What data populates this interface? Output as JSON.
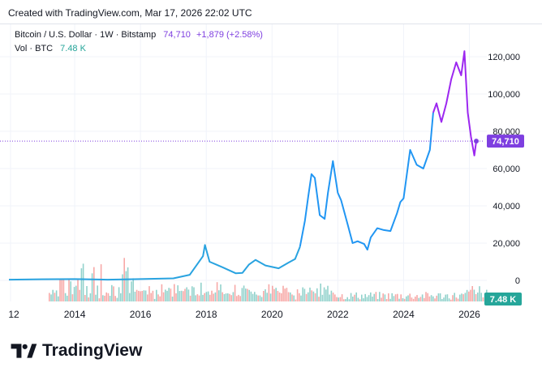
{
  "header": {
    "created_text": "Created with TradingView.com, Mar 17, 2026 22:02 UTC"
  },
  "legend": {
    "symbol": "Bitcoin / U.S. Dollar · 1W · Bitstamp",
    "price": "74,710",
    "change": "+1,879 (+2.58%)",
    "vol_label": "Vol · BTC",
    "vol_value": "7.48 K"
  },
  "footer": {
    "brand": "TradingView"
  },
  "colors": {
    "line_pre2024": "#2196f3",
    "line_early": "#29a3e0",
    "line_recent": "#9c27f0",
    "price_badge": "#7e3fe0",
    "vol_badge": "#26a69a",
    "vol_up": "#26a69a",
    "vol_down": "#ef5350"
  },
  "chart_data": {
    "type": "line",
    "x_axis_ticks": [
      "12",
      "2014",
      "2016",
      "2018",
      "2020",
      "2022",
      "2024",
      "2026"
    ],
    "y_axis_ticks": [
      "0",
      "20,000",
      "40,000",
      "60,000",
      "80,000",
      "100,000",
      "120,000"
    ],
    "current_price_label": "74,710",
    "current_volume_label": "7.48 K",
    "series": [
      {
        "x": [
          2012.0,
          2013.0,
          2014.0,
          2015.0,
          2016.0,
          2017.0,
          2017.5,
          2017.9,
          2017.96,
          2018.1,
          2018.3,
          2018.5,
          2018.9,
          2019.1,
          2019.3,
          2019.5,
          2019.8,
          2020.0,
          2020.2,
          2020.5,
          2020.7,
          2020.85,
          2021.0,
          2021.1,
          2021.2,
          2021.3,
          2021.45,
          2021.6,
          2021.7,
          2021.85,
          2022.0,
          2022.1,
          2022.3,
          2022.45,
          2022.6,
          2022.8,
          2022.9,
          2023.0,
          2023.2,
          2023.4,
          2023.6,
          2023.8,
          2023.9,
          2024.0,
          2024.2,
          2024.4,
          2024.6,
          2024.8,
          2024.9,
          2025.0,
          2025.15,
          2025.3,
          2025.45,
          2025.6,
          2025.75,
          2025.85,
          2025.95,
          2026.05,
          2026.15,
          2026.21
        ],
        "y": [
          400,
          600,
          700,
          400,
          700,
          1100,
          3000,
          13000,
          19000,
          10000,
          8500,
          7000,
          3800,
          4000,
          8500,
          11000,
          8000,
          7200,
          6500,
          9500,
          11500,
          18000,
          32000,
          45000,
          57000,
          55000,
          35000,
          33000,
          47000,
          64000,
          47000,
          43000,
          30000,
          20000,
          21000,
          19500,
          16500,
          23000,
          28000,
          27000,
          26500,
          36000,
          42000,
          44000,
          70000,
          62000,
          60000,
          70000,
          90000,
          95000,
          85000,
          95000,
          108000,
          117000,
          110000,
          123000,
          90000,
          77000,
          67000,
          74710
        ]
      }
    ],
    "ylim": [
      -10000,
      130000
    ],
    "xlim": [
      2012,
      2026.6
    ]
  }
}
